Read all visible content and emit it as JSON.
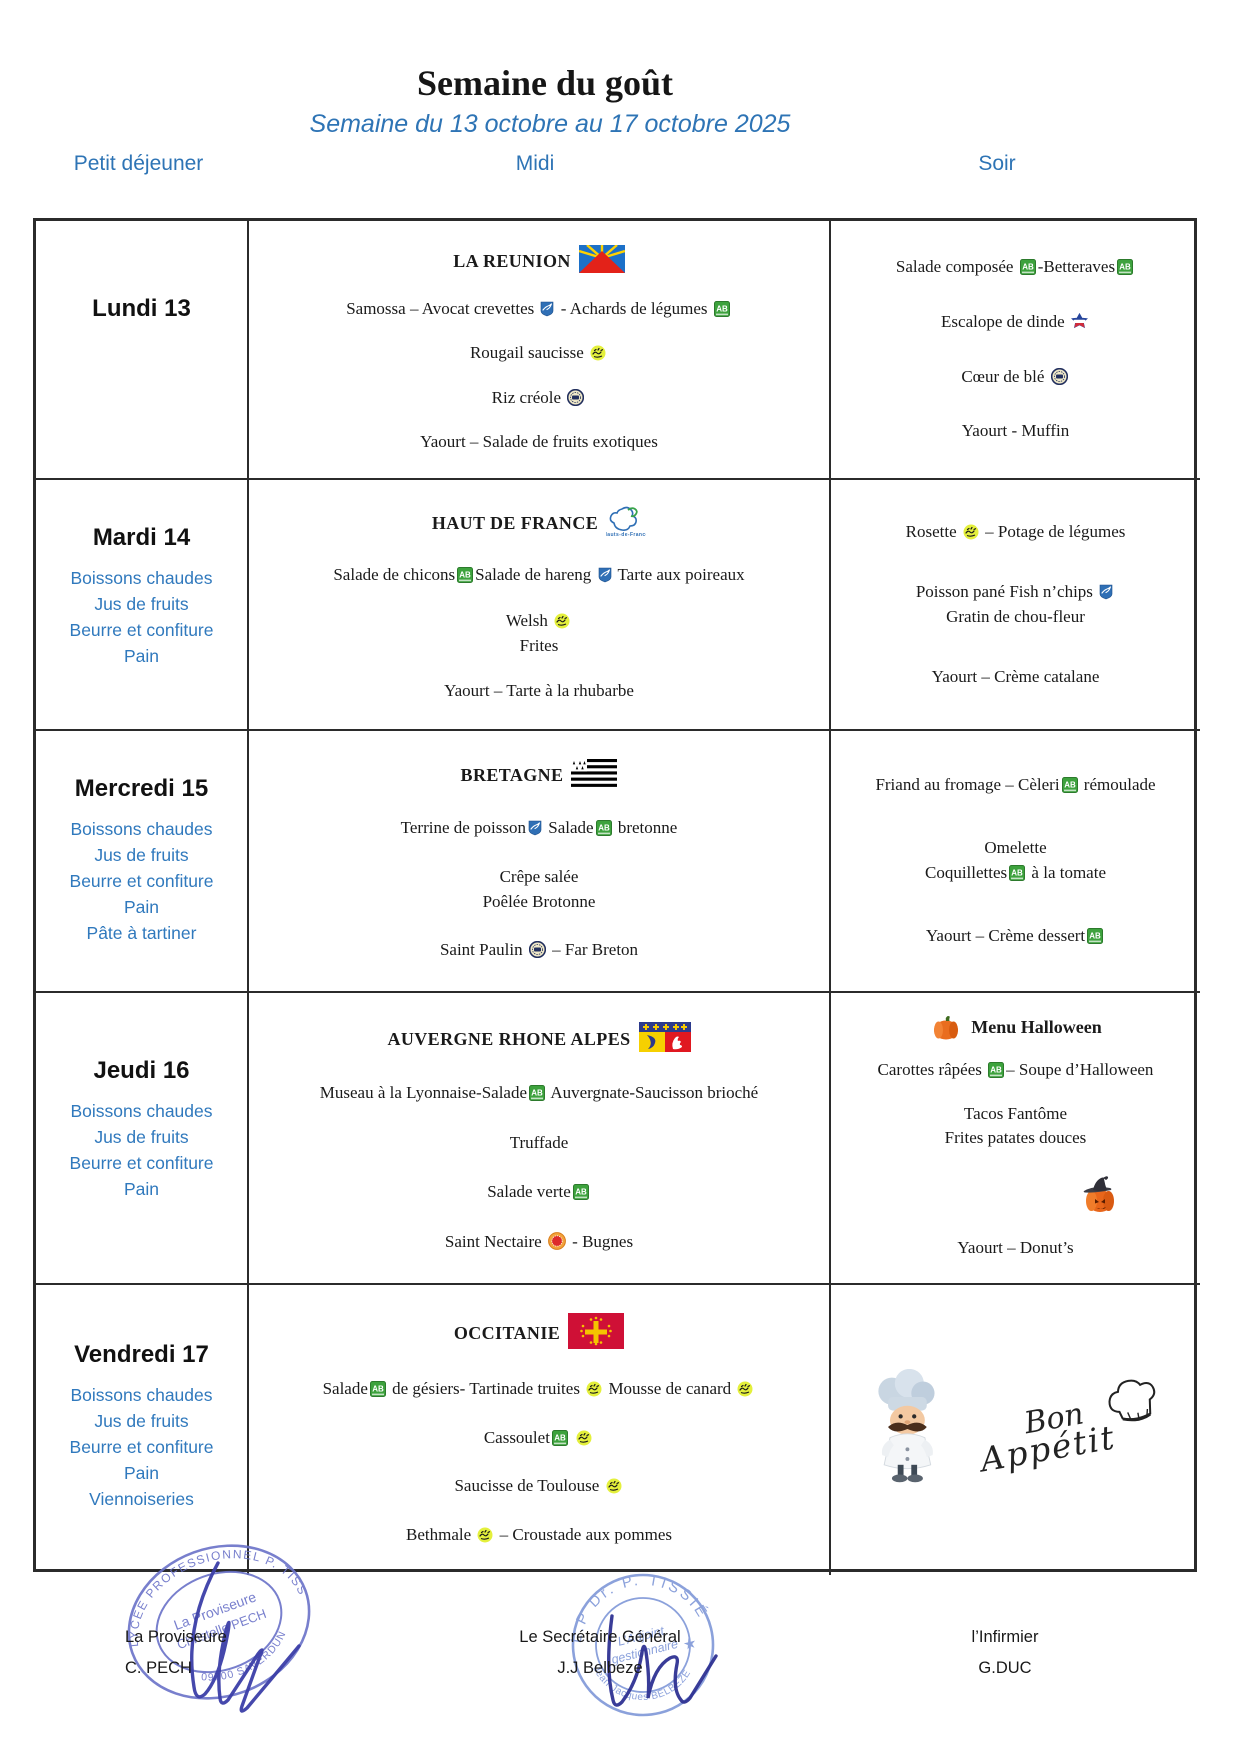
{
  "title": "Semaine du goût",
  "subtitle": "Semaine du 13 octobre au 17 octobre 2025",
  "columns": {
    "breakfast": "Petit déjeuner",
    "midi": "Midi",
    "soir": "Soir"
  },
  "icons": {
    "hdf_caption": "Hauts-de-France"
  },
  "rows": [
    {
      "day": "Lundi 13",
      "breakfast": [],
      "midi": {
        "region": "LA REUNION",
        "flag": "reunion",
        "blocks": [
          [
            "Samossa – Avocat crevettes {fish} - Achards de légumes {ab}"
          ],
          [
            "Rougail saucisse {halal}"
          ],
          [
            "Riz créole {stamp}"
          ],
          [
            "Yaourt – Salade de fruits exotiques"
          ]
        ]
      },
      "soir": {
        "blocks": [
          [
            "Salade composée {ab}-Betteraves{ab}"
          ],
          [
            "Escalope de dinde {vf}"
          ],
          [
            "Cœur de blé {stamp}"
          ],
          [
            "Yaourt - Muffin"
          ]
        ]
      }
    },
    {
      "day": "Mardi 14",
      "breakfast": [
        "Boissons chaudes",
        "Jus de fruits",
        "Beurre et confiture",
        "Pain"
      ],
      "midi": {
        "region": "HAUT DE FRANCE",
        "flag": "hdf",
        "blocks": [
          [
            "Salade de chicons{ab}Salade de hareng {fish} Tarte aux poireaux"
          ],
          [
            "Welsh {halal}",
            "Frites"
          ],
          [
            "Yaourt – Tarte à la rhubarbe"
          ]
        ]
      },
      "soir": {
        "blocks": [
          [
            "Rosette {halal} – Potage de légumes"
          ],
          [
            "Poisson pané Fish n’chips {fish}",
            "Gratin de chou-fleur"
          ],
          [
            "Yaourt – Crème catalane"
          ]
        ]
      }
    },
    {
      "day": "Mercredi 15",
      "breakfast": [
        "Boissons chaudes",
        "Jus de fruits",
        "Beurre et confiture",
        "Pain",
        "Pâte à tartiner"
      ],
      "midi": {
        "region": "BRETAGNE",
        "flag": "bretagne",
        "blocks": [
          [
            "Terrine de poisson{fish} Salade{ab} bretonne"
          ],
          [
            "Crêpe salée",
            "Poêlée Brotonne"
          ],
          [
            "Saint Paulin {stamp} – Far Breton"
          ]
        ]
      },
      "soir": {
        "blocks": [
          [
            "Friand au fromage – Cèleri{ab} rémoulade"
          ],
          [
            "Omelette",
            "Coquillettes{ab} à la tomate"
          ],
          [
            "Yaourt – Crème dessert{ab}"
          ]
        ]
      }
    },
    {
      "day": "Jeudi 16",
      "breakfast": [
        "Boissons chaudes",
        "Jus de fruits",
        "Beurre et confiture",
        "Pain"
      ],
      "midi": {
        "region": "AUVERGNE RHONE ALPES",
        "flag": "aura",
        "blocks": [
          [
            "Museau à la Lyonnaise-Salade{ab} Auvergnate-Saucisson brioché"
          ],
          [
            "Truffade"
          ],
          [
            "Salade verte{ab}"
          ],
          [
            "Saint Nectaire {aop} - Bugnes"
          ]
        ]
      },
      "soir": {
        "header": "Menu Halloween",
        "header_icon": "pumpkin",
        "blocks": [
          [
            "Carottes râpées {ab}– Soupe d’Halloween"
          ],
          [
            "Tacos Fantôme",
            "Frites patates douces"
          ],
          [
            "{witch}"
          ],
          [
            "Yaourt – Donut’s"
          ]
        ]
      }
    },
    {
      "day": "Vendredi 17",
      "breakfast": [
        "Boissons chaudes",
        "Jus de fruits",
        "Beurre et confiture",
        "Pain",
        "Viennoiseries"
      ],
      "midi": {
        "region": "OCCITANIE",
        "flag": "occitanie",
        "blocks": [
          [
            "Salade{ab} de gésiers- Tartinade truites {halal} Mousse de canard {halal}"
          ],
          [
            "Cassoulet{ab} {halal}"
          ],
          [
            "Saucisse de Toulouse {halal}"
          ],
          [
            "Bethmale {halal} – Croustade aux pommes"
          ]
        ]
      },
      "soir": {
        "special": "bon-appetit",
        "special_text": "Bon Appétit"
      }
    }
  ],
  "footer": {
    "left": {
      "role": "La Proviseure",
      "name": "C. PECH"
    },
    "center": {
      "role": "Le Secrétaire Général",
      "name": "J.J Belbeze"
    },
    "right": {
      "role": "l’Infirmier",
      "name": "G.DUC"
    },
    "stamp_left": {
      "arc_top": "LYCÉE PROFESSIONNEL P. TISSIÉ",
      "line1": "La Proviseure",
      "line2": "Christelle PECH",
      "arc_bottom": "09700 SAVERDUN"
    },
    "stamp_center": {
      "arc_top": "L.P  Dr. P. TISSIÉ",
      "line1": "L’Adjoint",
      "line2": "gestionnaire",
      "arc_bottom": "Jean-Jacques BELBEZE"
    }
  }
}
